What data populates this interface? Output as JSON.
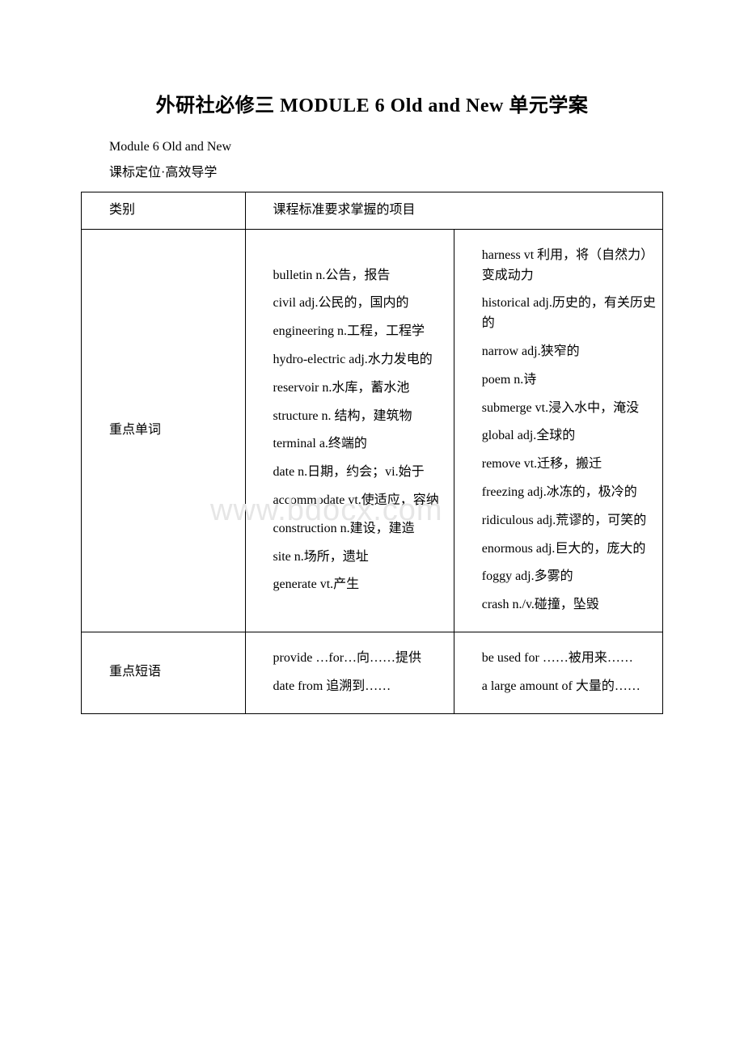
{
  "title": "外研社必修三 MODULE 6 Old and New 单元学案",
  "subtitle": "Module 6 Old and New",
  "subnote": "课标定位·高效导学",
  "header_col1": "类别",
  "header_col23": "课程标准要求掌握的项目",
  "row1_label": "重点单词",
  "row1_col2": [
    "bulletin n.公告，报告",
    "civil adj.公民的，国内的",
    "engineering n.工程，工程学",
    "hydro-electric adj.水力发电的",
    "reservoir n.水库，蓄水池",
    "structure n. 结构，建筑物",
    "terminal a.终端的",
    "date n.日期，约会；vi.始于",
    "accommodate vt.使适应，容纳",
    "construction n.建设，建造",
    "site n.场所，遗址",
    "generate vt.产生"
  ],
  "row1_col3": [
    "harness vt 利用，将（自然力）变成动力",
    "historical adj.历史的，有关历史的",
    "narrow adj.狭窄的",
    "poem n.诗",
    "submerge vt.浸入水中，淹没",
    "global adj.全球的",
    "remove vt.迁移，搬迁",
    "freezing adj.冰冻的，极冷的",
    "ridiculous adj.荒谬的，可笑的",
    "enormous adj.巨大的，庞大的",
    "foggy adj.多雾的",
    "crash n./v.碰撞，坠毁"
  ],
  "row2_label": "重点短语",
  "row2_col2": [
    "provide …for…向……提供",
    "date from 追溯到……"
  ],
  "row2_col3": [
    "be used for ……被用来……",
    "a large amount of 大量的……"
  ],
  "watermark": "www.bdocx.com"
}
